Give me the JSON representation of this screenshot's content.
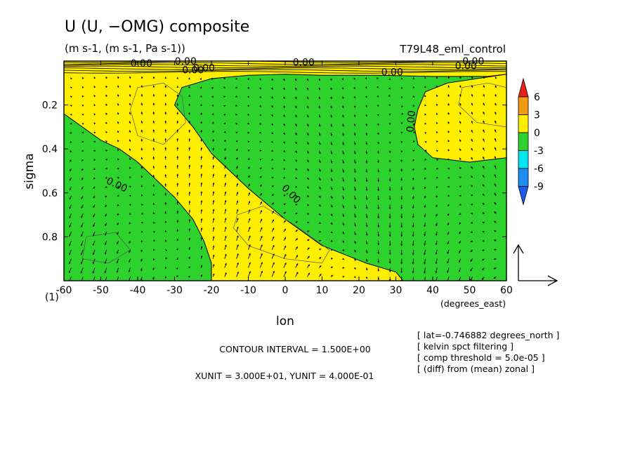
{
  "header": {
    "title": "U (U, −OMG) composite",
    "units": "(m s-1, (m s-1, Pa s-1))",
    "experiment": "T79L48_eml_control"
  },
  "chart_data": {
    "type": "contour",
    "x": {
      "label": "lon",
      "unit": "(degrees_east)",
      "range": [
        -60,
        60
      ],
      "ticks": [
        -60,
        -50,
        -40,
        -30,
        -20,
        -10,
        0,
        10,
        20,
        30,
        40,
        50,
        60
      ],
      "tick_labels": [
        "-60",
        "-50",
        "-40",
        "-30",
        "-20",
        "-10",
        "0",
        "10",
        "20",
        "30",
        "40",
        "50",
        "60"
      ],
      "axis_note": "(1)"
    },
    "y": {
      "label": "sigma",
      "range": [
        1.0,
        0.0
      ],
      "reversed": true,
      "ticks": [
        0.2,
        0.4,
        0.6,
        0.8
      ],
      "tick_labels": [
        "0.2",
        "0.4",
        "0.6",
        "0.8"
      ]
    },
    "colorbar": {
      "levels": [
        "6",
        "3",
        "0",
        "-3",
        "-6",
        "-9"
      ],
      "colors": [
        "#e8231e",
        "#f29a11",
        "#ffee00",
        "#2dd22d",
        "#00e6f0",
        "#1e8cf0",
        "#1e5af0"
      ]
    },
    "contour_label": "0.00",
    "contour_labels": [
      "0.00",
      "0.00",
      "0.00",
      "0.00",
      "0.00",
      "0.00",
      "0.00",
      "0.00",
      "0.00"
    ],
    "zero_contour_regions": [
      {
        "name": "positive-west",
        "sign": "positive",
        "outline": [
          [
            -60,
            0.24
          ],
          [
            -55,
            0.3
          ],
          [
            -50,
            0.36
          ],
          [
            -45,
            0.4
          ],
          [
            -40,
            0.46
          ],
          [
            -35,
            0.54
          ],
          [
            -30,
            0.62
          ],
          [
            -25,
            0.72
          ],
          [
            -22,
            0.82
          ],
          [
            -20,
            0.92
          ],
          [
            -20,
            1.0
          ],
          [
            32,
            1.0
          ],
          [
            30,
            0.96
          ],
          [
            22,
            0.92
          ],
          [
            10,
            0.84
          ],
          [
            0,
            0.72
          ],
          [
            -10,
            0.58
          ],
          [
            -20,
            0.42
          ],
          [
            -25,
            0.3
          ],
          [
            -30,
            0.2
          ],
          [
            -28,
            0.12
          ],
          [
            -20,
            0.08
          ],
          [
            -10,
            0.065
          ],
          [
            0,
            0.06
          ],
          [
            10,
            0.065
          ],
          [
            25,
            0.065
          ],
          [
            40,
            0.07
          ],
          [
            55,
            0.07
          ],
          [
            60,
            0.06
          ],
          [
            60,
            0.0
          ],
          [
            -60,
            0.0
          ]
        ]
      },
      {
        "name": "positive-east",
        "sign": "positive",
        "outline": [
          [
            38,
            0.14
          ],
          [
            36,
            0.22
          ],
          [
            35,
            0.3
          ],
          [
            36,
            0.38
          ],
          [
            40,
            0.44
          ],
          [
            50,
            0.46
          ],
          [
            60,
            0.44
          ],
          [
            60,
            0.06
          ],
          [
            52,
            0.08
          ],
          [
            44,
            0.1
          ]
        ]
      }
    ],
    "top_band_note": "dense zero contours between sigma 0.00 and 0.06",
    "vector_field": {
      "quantity": "(U, -OMG)",
      "xunit": 30.0,
      "yunit": 0.4
    },
    "contour_interval": 1.5
  },
  "notes": {
    "contour_interval": "CONTOUR INTERVAL = 1.500E+00",
    "units": "XUNIT = 3.000E+01, YUNIT = 4.000E-01",
    "meta": [
      "[ lat=-0.746882 degrees_north ]",
      "[ kelvin spct filtering ]",
      "[ comp threshold = 5.0e-05 ]",
      "[ (diff) from (mean) zonal ]"
    ]
  }
}
